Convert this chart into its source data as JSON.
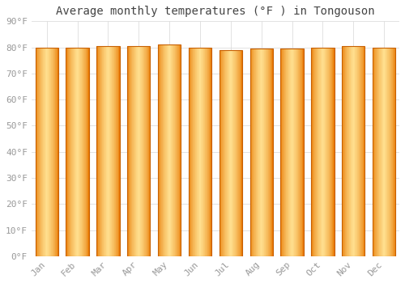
{
  "title": "Average monthly temperatures (°F ) in Tongouson",
  "months": [
    "Jan",
    "Feb",
    "Mar",
    "Apr",
    "May",
    "Jun",
    "Jul",
    "Aug",
    "Sep",
    "Oct",
    "Nov",
    "Dec"
  ],
  "values": [
    80.0,
    80.0,
    80.5,
    80.5,
    81.0,
    80.0,
    79.0,
    79.5,
    79.5,
    80.0,
    80.5,
    80.0
  ],
  "bar_color_light": "#FFE090",
  "bar_color_mid": "#FFB020",
  "bar_color_dark": "#E87800",
  "bar_edge_color": "#C86000",
  "background_color": "#FFFFFF",
  "plot_background": "#FFFFFF",
  "grid_color": "#DDDDDD",
  "ylim": [
    0,
    90
  ],
  "ytick_step": 10,
  "title_fontsize": 10,
  "tick_fontsize": 8,
  "bar_width": 0.75,
  "num_gradient_slices": 40
}
